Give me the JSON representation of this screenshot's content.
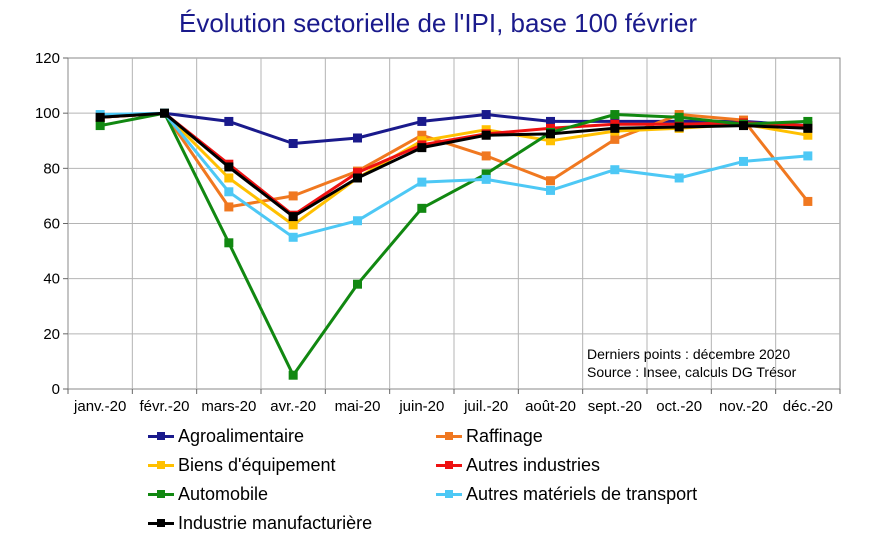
{
  "chart_data": {
    "type": "line",
    "title": "Évolution sectorielle de l'IPI, base 100 février",
    "xlabel": "",
    "ylabel": "",
    "ylim": [
      0,
      120
    ],
    "yticks": [
      0,
      20,
      40,
      60,
      80,
      100,
      120
    ],
    "grid": true,
    "legend_position": "bottom",
    "categories": [
      "janv.-20",
      "févr.-20",
      "mars-20",
      "avr.-20",
      "mai-20",
      "juin-20",
      "juil.-20",
      "août-20",
      "sept.-20",
      "oct.-20",
      "nov.-20",
      "déc.-20"
    ],
    "series": [
      {
        "name": "Agroalimentaire",
        "color": "#1a1a8c",
        "values": [
          98.5,
          100,
          97,
          89,
          91,
          97,
          99.5,
          97,
          97,
          97,
          97,
          95.5
        ]
      },
      {
        "name": "Raffinage",
        "color": "#f07820",
        "values": [
          98.5,
          100,
          66,
          70,
          79,
          92,
          84.5,
          75.5,
          90.5,
          99.5,
          97.5,
          68
        ]
      },
      {
        "name": "Biens d'équipement",
        "color": "#ffc000",
        "values": [
          98.5,
          100,
          76.5,
          59.5,
          76.5,
          90,
          94,
          90,
          93.5,
          94.5,
          96,
          92
        ]
      },
      {
        "name": "Autres industries",
        "color": "#ee1111",
        "values": [
          98.5,
          100,
          81.5,
          63,
          78.5,
          88.5,
          92.5,
          94.5,
          96,
          96,
          96.5,
          95.5
        ]
      },
      {
        "name": "Automobile",
        "color": "#118811",
        "values": [
          95.5,
          100,
          53,
          5,
          38,
          65.5,
          78,
          93,
          99.5,
          98.5,
          96,
          97
        ]
      },
      {
        "name": "Autres matériels de transport",
        "color": "#4dc8f5",
        "values": [
          99.5,
          100,
          71.5,
          55,
          61,
          75,
          76,
          72,
          79.5,
          76.5,
          82.5,
          84.5
        ]
      },
      {
        "name": "Industrie manufacturière",
        "color": "#000000",
        "values": [
          98.5,
          100,
          80.5,
          62.5,
          76.5,
          87.5,
          92,
          92.5,
          94.5,
          95,
          95.5,
          94.5
        ]
      }
    ],
    "annotations": [
      "Derniers points : décembre 2020",
      "Source : Insee, calculs DG Trésor"
    ]
  }
}
